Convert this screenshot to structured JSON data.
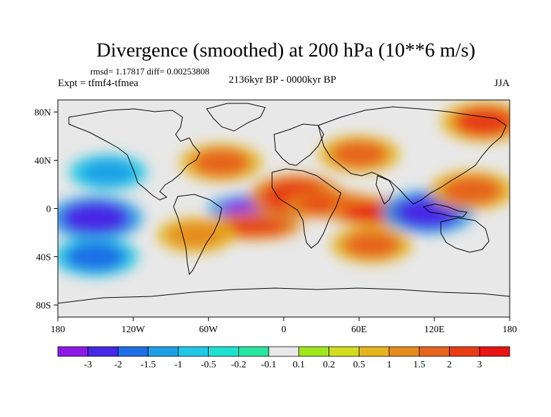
{
  "chart_data": {
    "type": "heatmap",
    "title": "Divergence (smoothed) at 200 hPa (10**6 m/s)",
    "stats": "rmsd= 1.17817 diff= 0.00253808",
    "left_label": "Expt = tfmf4-tfmea",
    "center_label": "2136kyr BP - 0000kyr BP",
    "right_label": "JJA",
    "x_range": [
      -180,
      180
    ],
    "y_range": [
      -90,
      90
    ],
    "x_ticks": [
      {
        "value": -180,
        "label": "180"
      },
      {
        "value": -120,
        "label": "120W"
      },
      {
        "value": -60,
        "label": "60W"
      },
      {
        "value": 0,
        "label": "0"
      },
      {
        "value": 60,
        "label": "60E"
      },
      {
        "value": 120,
        "label": "120E"
      },
      {
        "value": 180,
        "label": "180"
      }
    ],
    "y_ticks": [
      {
        "value": 80,
        "label": "80N"
      },
      {
        "value": 40,
        "label": "40N"
      },
      {
        "value": 0,
        "label": "0"
      },
      {
        "value": -40,
        "label": "40S"
      },
      {
        "value": -80,
        "label": "80S"
      }
    ],
    "colorbar": {
      "levels": [
        "-3",
        "-2",
        "-1.5",
        "-1",
        "-0.5",
        "-0.2",
        "-0.1",
        "0.1",
        "0.2",
        "0.5",
        "1",
        "1.5",
        "2",
        "3"
      ],
      "colors": [
        "#8c1ae6",
        "#4628e6",
        "#1e6ee6",
        "#1ea0e6",
        "#1ec8e6",
        "#1ee1d2",
        "#28e6a0",
        "#e8e8e8",
        "#a0e61e",
        "#d2dc1e",
        "#e6b41e",
        "#e68c1e",
        "#e6641e",
        "#e63c14",
        "#e61414"
      ]
    },
    "features": [
      {
        "name": "pacific-equatorial-negative",
        "lon": -150,
        "lat": -8,
        "value": -2.5
      },
      {
        "name": "atlantic-equatorial-negative",
        "lon": -20,
        "lat": 0,
        "value": -3.2
      },
      {
        "name": "south-atlantic-positive",
        "lon": -25,
        "lat": -15,
        "value": 2.8
      },
      {
        "name": "west-africa-positive",
        "lon": 10,
        "lat": 10,
        "value": 2.5
      },
      {
        "name": "east-africa-positive",
        "lon": 40,
        "lat": 3,
        "value": 2.8
      },
      {
        "name": "indian-ocean-positive",
        "lon": 75,
        "lat": -3,
        "value": 3.0
      },
      {
        "name": "maritime-continent-negative",
        "lon": 115,
        "lat": -3,
        "value": -2.4
      },
      {
        "name": "north-pacific-positive",
        "lon": 150,
        "lat": 15,
        "value": 1.8
      },
      {
        "name": "north-atlantic-positive",
        "lon": -50,
        "lat": 38,
        "value": 1.6
      },
      {
        "name": "asia-positive",
        "lon": 60,
        "lat": 45,
        "value": 1.5
      },
      {
        "name": "south-pacific-negative",
        "lon": -150,
        "lat": -40,
        "value": -1.8
      },
      {
        "name": "south-indian-positive",
        "lon": 70,
        "lat": -30,
        "value": 1.5
      },
      {
        "name": "south-america-positive",
        "lon": -70,
        "lat": -22,
        "value": 1.2
      },
      {
        "name": "north-pacific-east-negative",
        "lon": -140,
        "lat": 30,
        "value": -1.2
      },
      {
        "name": "arctic-positive",
        "lon": 160,
        "lat": 72,
        "value": 2.0
      }
    ]
  }
}
